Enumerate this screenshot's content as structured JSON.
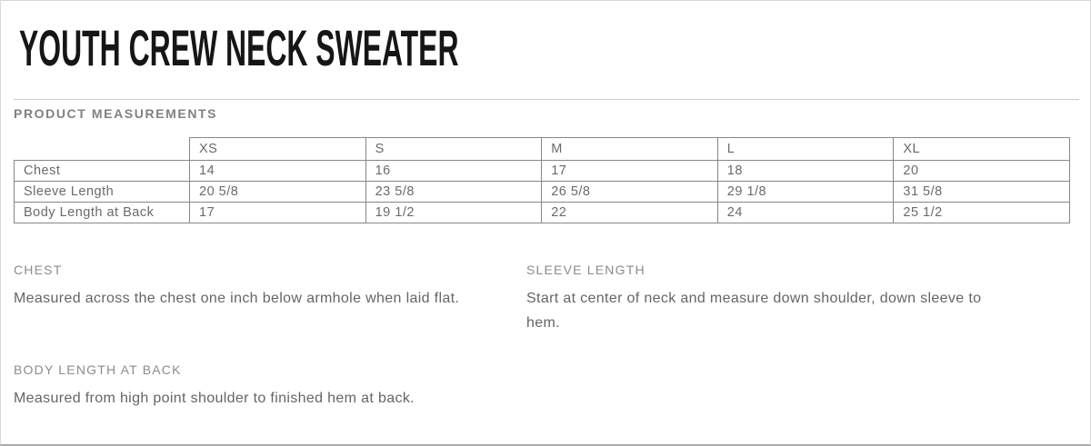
{
  "page": {
    "title": "YOUTH CREW NECK SWEATER",
    "section_heading": "PRODUCT MEASUREMENTS"
  },
  "measurements_table": {
    "columns": [
      "XS",
      "S",
      "M",
      "L",
      "XL"
    ],
    "rows": [
      {
        "label": "Chest",
        "values": [
          "14",
          "16",
          "17",
          "18",
          "20"
        ]
      },
      {
        "label": "Sleeve Length",
        "values": [
          "20 5/8",
          "23 5/8",
          "26 5/8",
          "29 1/8",
          "31 5/8"
        ]
      },
      {
        "label": "Body Length at Back",
        "values": [
          "17",
          "19 1/2",
          "22",
          "24",
          "25 1/2"
        ]
      }
    ]
  },
  "definitions": [
    {
      "term": "CHEST",
      "description": "Measured across the chest one inch below armhole when laid flat."
    },
    {
      "term": "SLEEVE LENGTH",
      "description": "Start at center of neck and measure down shoulder, down sleeve to hem."
    },
    {
      "term": "BODY LENGTH AT BACK",
      "description": "Measured from high point shoulder to finished hem at back."
    }
  ],
  "colors": {
    "title_text": "#161616",
    "muted_label": "#7f8184",
    "table_text": "#696a6d",
    "table_border": "#85878a",
    "body_text": "#646568",
    "divider": "#c9c9c9"
  }
}
